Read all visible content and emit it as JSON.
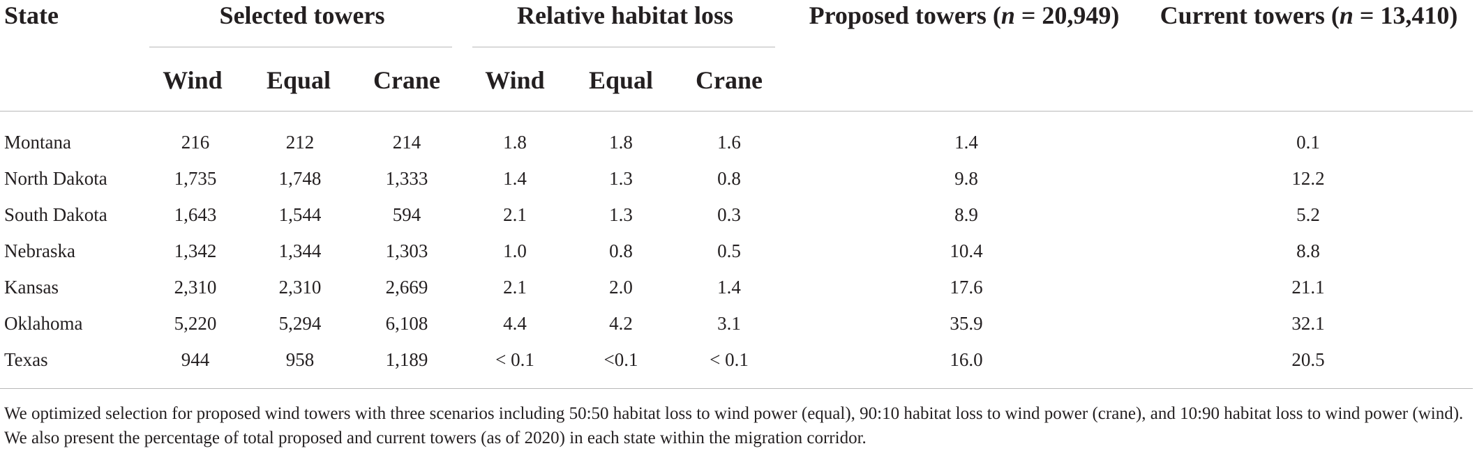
{
  "table": {
    "header": {
      "state": "State",
      "selected_towers": "Selected towers",
      "relative_habitat_loss": "Relative habitat loss",
      "proposed_towers_prefix": "Proposed towers (",
      "proposed_towers_n": "n",
      "proposed_towers_suffix": " = 20,949)",
      "current_towers_prefix": "Current towers (",
      "current_towers_n": "n",
      "current_towers_suffix": " = 13,410)",
      "sub": [
        "Wind",
        "Equal",
        "Crane",
        "Wind",
        "Equal",
        "Crane"
      ]
    },
    "rows": [
      {
        "state": "Montana",
        "values": [
          "216",
          "212",
          "214",
          "1.8",
          "1.8",
          "1.6",
          "1.4",
          "0.1"
        ]
      },
      {
        "state": "North Dakota",
        "values": [
          "1,735",
          "1,748",
          "1,333",
          "1.4",
          "1.3",
          "0.8",
          "9.8",
          "12.2"
        ]
      },
      {
        "state": "South Dakota",
        "values": [
          "1,643",
          "1,544",
          "594",
          "2.1",
          "1.3",
          "0.3",
          "8.9",
          "5.2"
        ]
      },
      {
        "state": "Nebraska",
        "values": [
          "1,342",
          "1,344",
          "1,303",
          "1.0",
          "0.8",
          "0.5",
          "10.4",
          "8.8"
        ]
      },
      {
        "state": "Kansas",
        "values": [
          "2,310",
          "2,310",
          "2,669",
          "2.1",
          "2.0",
          "1.4",
          "17.6",
          "21.1"
        ]
      },
      {
        "state": "Oklahoma",
        "values": [
          "5,220",
          "5,294",
          "6,108",
          "4.4",
          "4.2",
          "3.1",
          "35.9",
          "32.1"
        ]
      },
      {
        "state": "Texas",
        "values": [
          "944",
          "958",
          "1,189",
          "< 0.1",
          "<0.1",
          "< 0.1",
          "16.0",
          "20.5"
        ]
      }
    ]
  },
  "footnote": "We optimized selection for proposed wind towers with three scenarios including 50:50 habitat loss to wind power (equal), 90:10 habitat loss to wind power (crane), and 10:90 habitat loss to wind power (wind). We also present the percentage of total proposed and current towers (as of 2020) in each state within the migration corridor."
}
